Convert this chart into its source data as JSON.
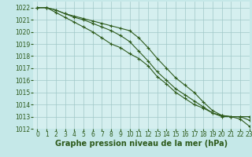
{
  "x": [
    0,
    1,
    2,
    3,
    4,
    5,
    6,
    7,
    8,
    9,
    10,
    11,
    12,
    13,
    14,
    15,
    16,
    17,
    18,
    19,
    20,
    21,
    22,
    23
  ],
  "line1": [
    1022,
    1022,
    1021.8,
    1021.5,
    1021.3,
    1021.1,
    1020.9,
    1020.7,
    1020.5,
    1020.3,
    1020.1,
    1019.5,
    1018.7,
    1017.8,
    1017.0,
    1016.2,
    1015.6,
    1015.0,
    1014.2,
    1013.5,
    1013.1,
    1013.0,
    1013.0,
    1013.0
  ],
  "line2": [
    1022,
    1022,
    1021.8,
    1021.5,
    1021.2,
    1021.0,
    1020.7,
    1020.4,
    1020.1,
    1019.7,
    1019.2,
    1018.4,
    1017.6,
    1016.7,
    1016.0,
    1015.3,
    1014.8,
    1014.3,
    1013.8,
    1013.3,
    1013.1,
    1013.0,
    1013.0,
    1012.7
  ],
  "line3": [
    1022,
    1022,
    1021.6,
    1021.2,
    1020.8,
    1020.4,
    1020.0,
    1019.5,
    1019.0,
    1018.7,
    1018.2,
    1017.8,
    1017.2,
    1016.3,
    1015.7,
    1015.0,
    1014.5,
    1014.0,
    1013.7,
    1013.3,
    1013.0,
    1013.0,
    1012.8,
    1012.2
  ],
  "line_color": "#2d5a1b",
  "line_width": 0.8,
  "marker": "+",
  "markersize": 3,
  "markeredgewidth": 0.8,
  "fig_bg": "#c5e8e8",
  "plot_bg": "#d5efef",
  "grid_color": "#a0c8c8",
  "grid_linewidth": 0.5,
  "tick_color": "#2d5a1b",
  "label_color": "#2d5a1b",
  "xlabel": "Graphe pression niveau de la mer (hPa)",
  "xlabel_fontsize": 7,
  "xlabel_fontweight": "bold",
  "ylim": [
    1012,
    1022.5
  ],
  "xlim": [
    -0.5,
    23
  ],
  "yticks": [
    1012,
    1013,
    1014,
    1015,
    1016,
    1017,
    1018,
    1019,
    1020,
    1021,
    1022
  ],
  "xticks": [
    0,
    1,
    2,
    3,
    4,
    5,
    6,
    7,
    8,
    9,
    10,
    11,
    12,
    13,
    14,
    15,
    16,
    17,
    18,
    19,
    20,
    21,
    22,
    23
  ],
  "tick_fontsize": 5.5
}
